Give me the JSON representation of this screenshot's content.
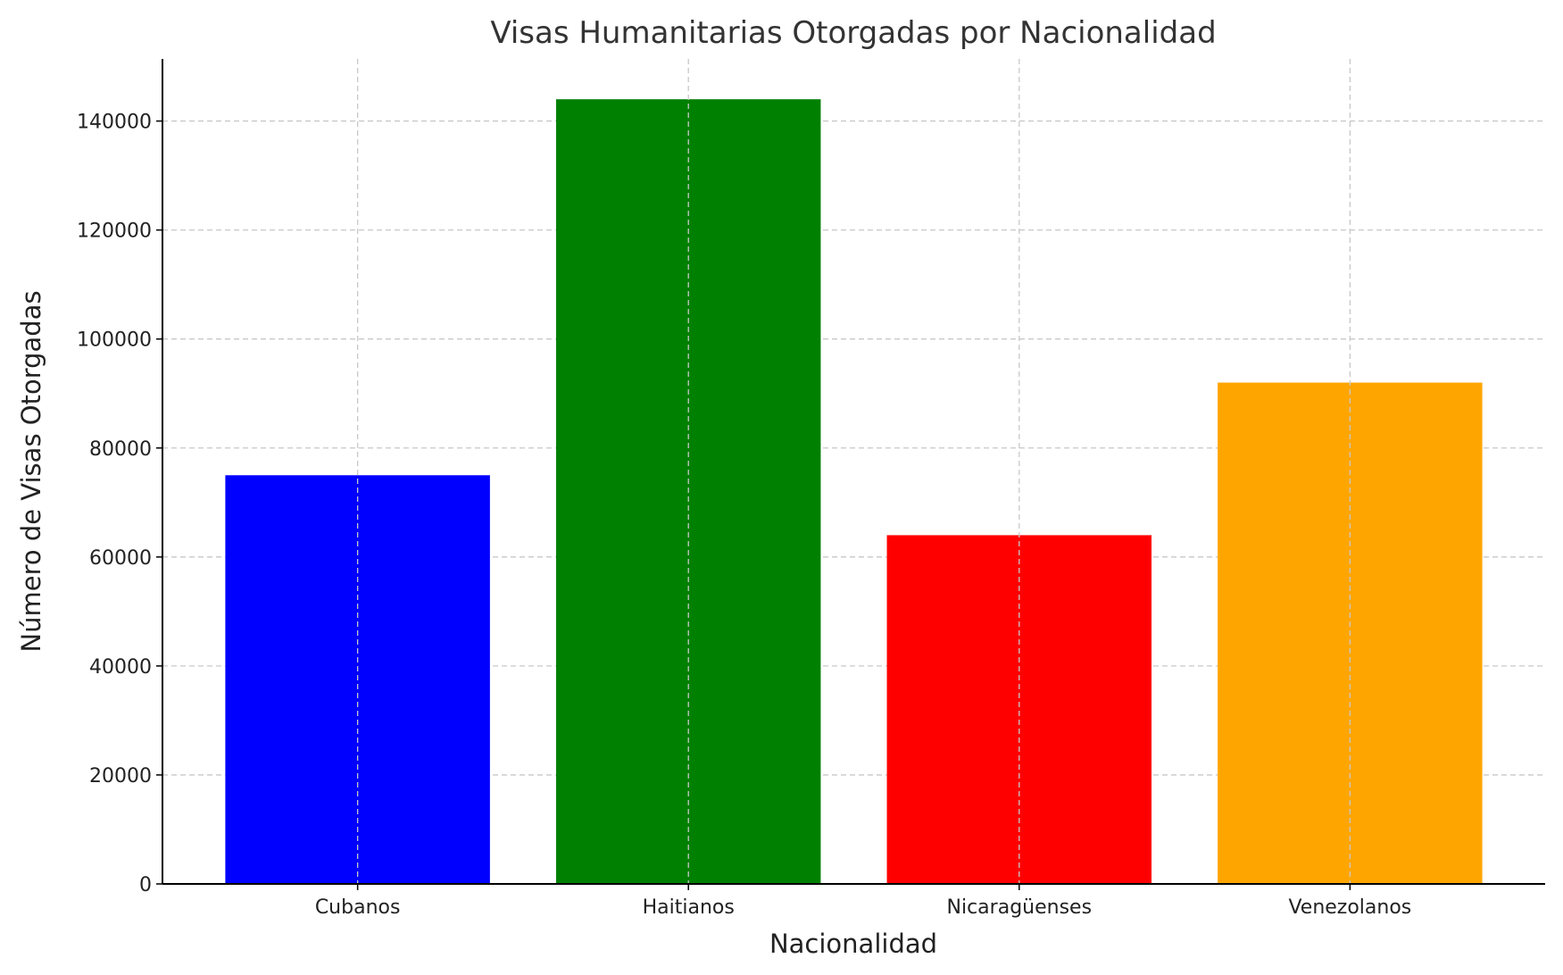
{
  "chart_data": {
    "type": "bar",
    "title": "Visas Humanitarias Otorgadas por Nacionalidad",
    "xlabel": "Nacionalidad",
    "ylabel": "Número de Visas Otorgadas",
    "categories": [
      "Cubanos",
      "Haitianos",
      "Nicaragüenses",
      "Venezolanos"
    ],
    "values": [
      75000,
      144000,
      64000,
      92000
    ],
    "colors": [
      "#0000ff",
      "#008000",
      "#ff0000",
      "#ffa500"
    ],
    "ylim": [
      0,
      151400
    ],
    "yticks": [
      0,
      20000,
      40000,
      60000,
      80000,
      100000,
      120000,
      140000
    ],
    "grid": true,
    "legend": "none"
  }
}
